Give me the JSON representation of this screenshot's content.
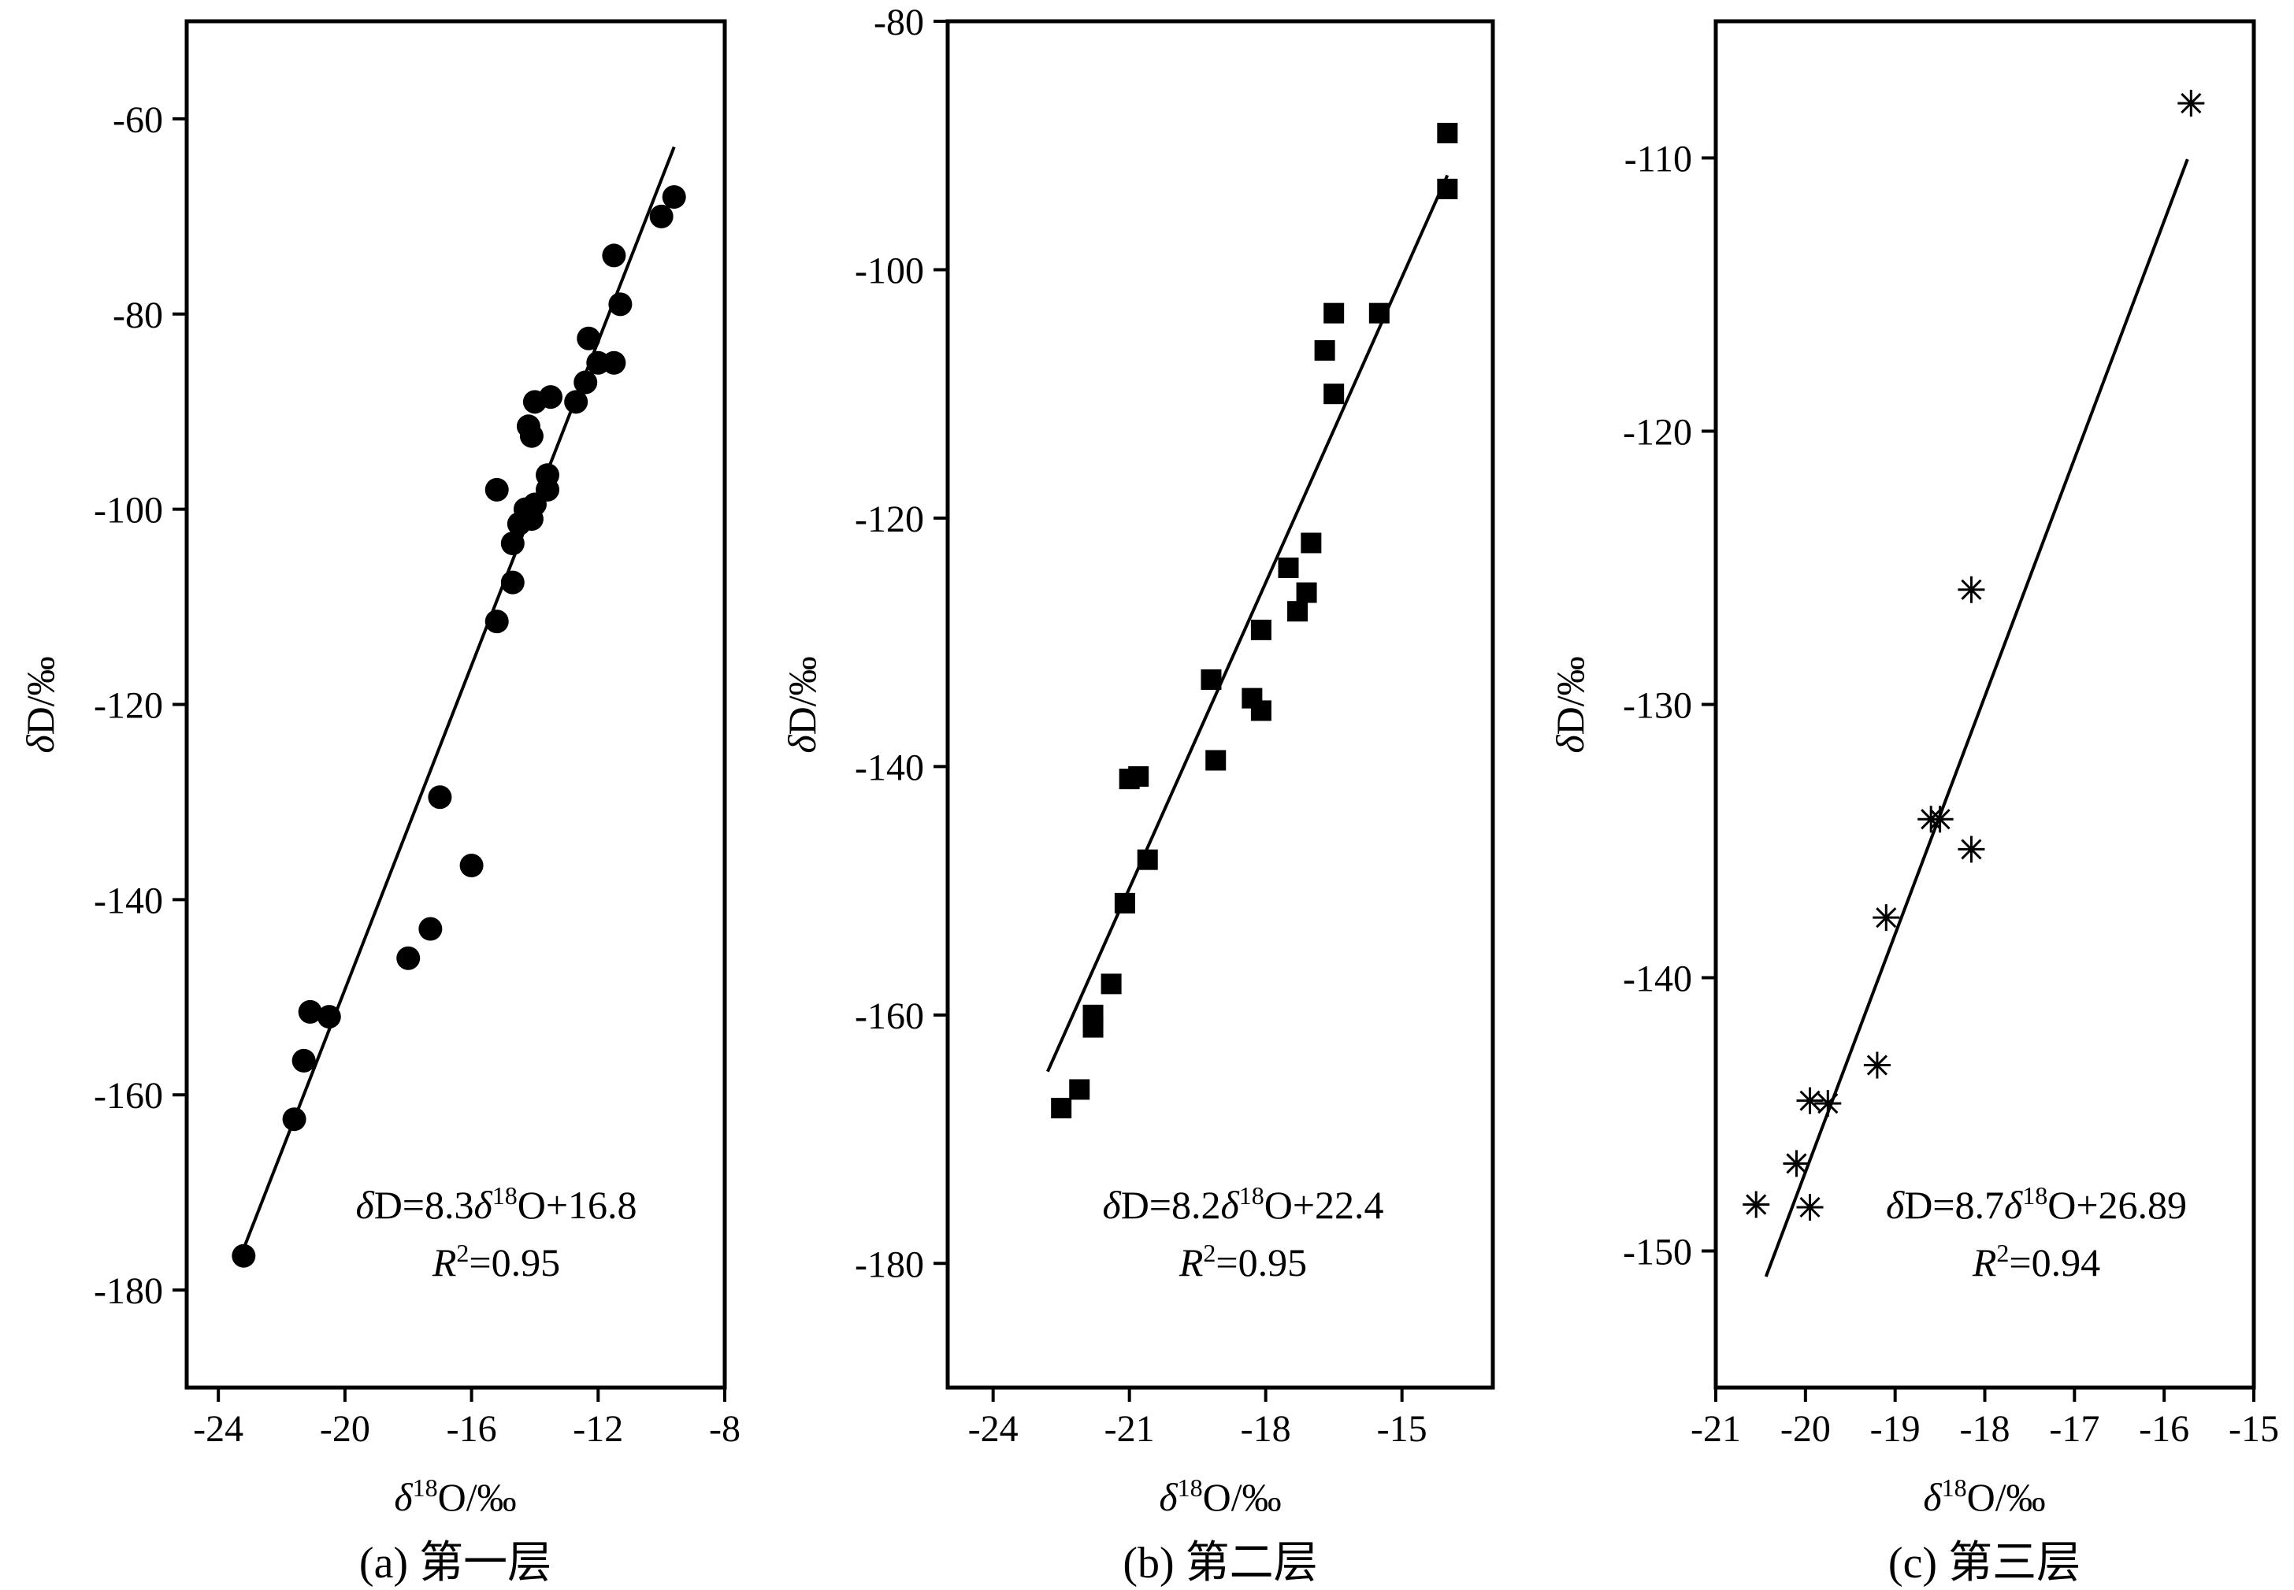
{
  "chart_data": [
    {
      "type": "scatter",
      "panel": "a",
      "caption": "(a) 第一层",
      "xlabel": "δ18O/‰",
      "ylabel": "δD/‰",
      "xlim": [
        -25,
        -8
      ],
      "ylim": [
        -190,
        -50
      ],
      "xticks": [
        -24,
        -20,
        -16,
        -12,
        -8
      ],
      "xtick_labels": [
        "-24",
        "-20",
        "-16",
        "-12",
        "-8"
      ],
      "yticks": [
        -60,
        -80,
        -100,
        -120,
        -140,
        -160,
        -180
      ],
      "ytick_labels": [
        "-60",
        "-80",
        "-100",
        "-120",
        "-140",
        "-160",
        "-180"
      ],
      "marker": "circle",
      "equation": "δD=8.3δ18O+16.8",
      "r2": "R2=0.95",
      "fit": {
        "slope": 8.3,
        "intercept": 16.8,
        "x_range": [
          -23.2,
          -9.6
        ]
      },
      "points": [
        [
          -9.6,
          -68
        ],
        [
          -10.0,
          -70
        ],
        [
          -11.3,
          -79
        ],
        [
          -11.5,
          -74
        ],
        [
          -11.5,
          -85
        ],
        [
          -12.0,
          -85
        ],
        [
          -12.3,
          -82.5
        ],
        [
          -12.4,
          -87
        ],
        [
          -12.7,
          -89
        ],
        [
          -13.5,
          -88.5
        ],
        [
          -13.6,
          -96.5
        ],
        [
          -13.6,
          -98
        ],
        [
          -14.0,
          -89
        ],
        [
          -14.1,
          -92.5
        ],
        [
          -14.2,
          -91.5
        ],
        [
          -14.0,
          -99.5
        ],
        [
          -14.1,
          -101
        ],
        [
          -14.3,
          -100
        ],
        [
          -14.5,
          -101.5
        ],
        [
          -14.7,
          -103.5
        ],
        [
          -14.7,
          -107.5
        ],
        [
          -15.2,
          -98
        ],
        [
          -15.2,
          -111.5
        ],
        [
          -16.0,
          -136.5
        ],
        [
          -17.0,
          -129.5
        ],
        [
          -17.3,
          -143
        ],
        [
          -18.0,
          -146
        ],
        [
          -20.5,
          -152
        ],
        [
          -21.1,
          -151.5
        ],
        [
          -21.3,
          -156.5
        ],
        [
          -21.6,
          -162.5
        ],
        [
          -23.2,
          -176.5
        ]
      ]
    },
    {
      "type": "scatter",
      "panel": "b",
      "caption": "(b) 第二层",
      "xlabel": "δ18O/‰",
      "ylabel": "δD/‰",
      "xlim": [
        -25,
        -13
      ],
      "ylim": [
        -190,
        -80
      ],
      "xticks": [
        -24,
        -21,
        -18,
        -15
      ],
      "xtick_labels": [
        "-24",
        "-21",
        "-18",
        "-15"
      ],
      "yticks": [
        -80,
        -100,
        -120,
        -140,
        -160,
        -180
      ],
      "ytick_labels": [
        "-80",
        "-100",
        "-120",
        "-140",
        "-160",
        "-180"
      ],
      "marker": "square",
      "equation": "δD=8.2δ18O+22.4",
      "r2": "R2=0.95",
      "fit": {
        "slope": 8.2,
        "intercept": 22.4,
        "x_range": [
          -22.8,
          -14.0
        ]
      },
      "points": [
        [
          -14.0,
          -89
        ],
        [
          -14.0,
          -93.5
        ],
        [
          -15.5,
          -103.5
        ],
        [
          -16.5,
          -103.5
        ],
        [
          -16.7,
          -106.5
        ],
        [
          -16.5,
          -110
        ],
        [
          -17.0,
          -122
        ],
        [
          -17.1,
          -126
        ],
        [
          -17.3,
          -127.5
        ],
        [
          -17.5,
          -124
        ],
        [
          -18.1,
          -129
        ],
        [
          -18.1,
          -135.5
        ],
        [
          -18.3,
          -134.5
        ],
        [
          -19.1,
          -139.5
        ],
        [
          -19.2,
          -133
        ],
        [
          -20.6,
          -147.5
        ],
        [
          -20.8,
          -140.8
        ],
        [
          -21.0,
          -141
        ],
        [
          -21.1,
          -151
        ],
        [
          -21.4,
          -157.5
        ],
        [
          -21.8,
          -160
        ],
        [
          -21.8,
          -161
        ],
        [
          -22.1,
          -166
        ],
        [
          -22.5,
          -167.5
        ]
      ]
    },
    {
      "type": "scatter",
      "panel": "c",
      "caption": "(c) 第三层",
      "xlabel": "δ18O/‰",
      "ylabel": "δD/‰",
      "xlim": [
        -21,
        -15
      ],
      "ylim": [
        -155,
        -105
      ],
      "xticks": [
        -21,
        -20,
        -19,
        -18,
        -17,
        -16,
        -15
      ],
      "xtick_labels": [
        "-21",
        "-20",
        "-19",
        "-18",
        "-17",
        "-16",
        "-15"
      ],
      "yticks": [
        -110,
        -120,
        -130,
        -140,
        -150
      ],
      "ytick_labels": [
        "-110",
        "-120",
        "-130",
        "-140",
        "-150"
      ],
      "marker": "asterisk",
      "equation": "δD=8.7δ18O+26.89",
      "r2": "R2=0.94",
      "fit": {
        "slope": 8.7,
        "intercept": 26.89,
        "x_range": [
          -20.44,
          -15.74
        ]
      },
      "points": [
        [
          -15.7,
          -108
        ],
        [
          -18.15,
          -125.8
        ],
        [
          -18.5,
          -134.2
        ],
        [
          -18.6,
          -134.2
        ],
        [
          -18.15,
          -135.3
        ],
        [
          -19.1,
          -137.8
        ],
        [
          -19.2,
          -143.2
        ],
        [
          -19.75,
          -144.6
        ],
        [
          -19.95,
          -144.5
        ],
        [
          -20.1,
          -146.8
        ],
        [
          -20.55,
          -148.3
        ],
        [
          -19.95,
          -148.4
        ]
      ]
    }
  ]
}
